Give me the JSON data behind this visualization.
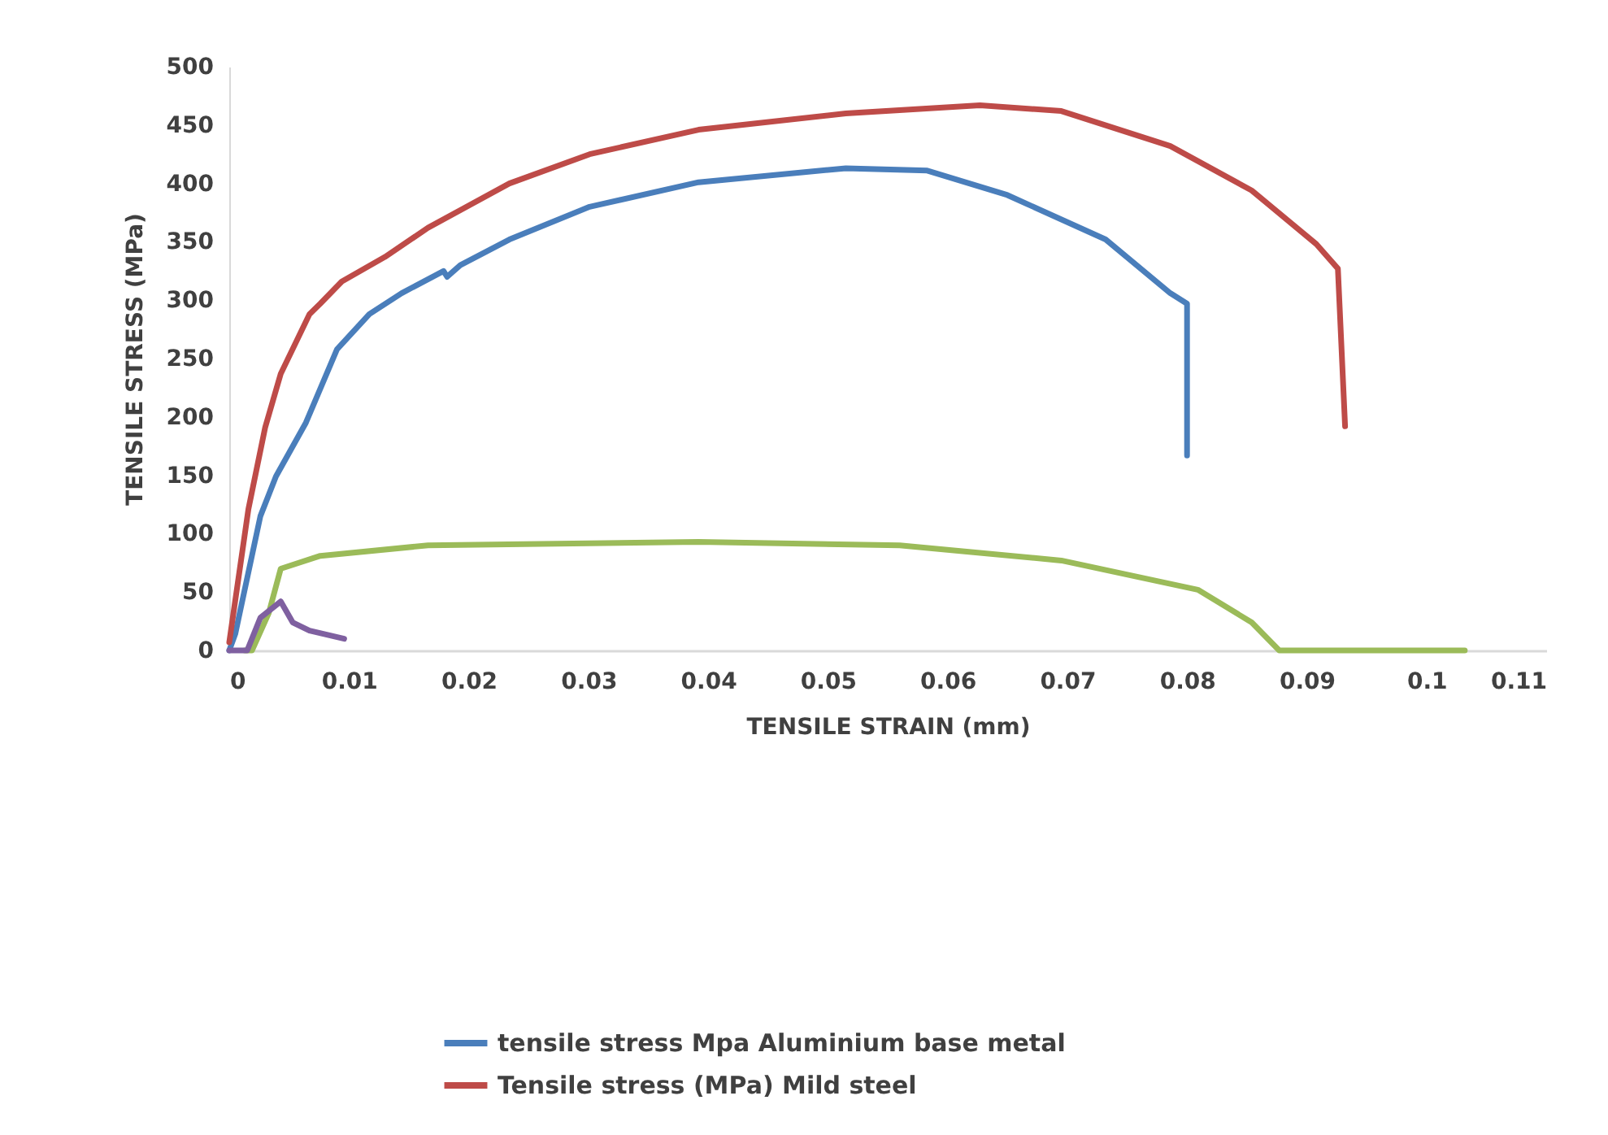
{
  "chart_data": {
    "type": "line",
    "xlabel": "TENSILE  STRAIN (mm)",
    "ylabel": "TENSILE STRESS (MPa)",
    "xlim": [
      0,
      0.11
    ],
    "xticks": [
      0,
      0.01,
      0.02,
      0.03,
      0.04,
      0.05,
      0.06,
      0.07,
      0.08,
      0.09,
      0.1,
      0.11
    ],
    "ylim": [
      0,
      500
    ],
    "yticks": [
      0,
      50,
      100,
      150,
      200,
      250,
      300,
      350,
      400,
      450,
      500
    ],
    "grid": false,
    "legend": "bottom",
    "marker": "none",
    "line_style": "solid",
    "series": [
      {
        "name": "tensile stress Mpa  Aluminium base metal",
        "color": "#4a7ebb",
        "x": [
          0,
          0.0005,
          0.0026,
          0.0039,
          0.0064,
          0.009,
          0.0117,
          0.0144,
          0.0179,
          0.0182,
          0.0193,
          0.0234,
          0.0301,
          0.0392,
          0.0515,
          0.0583,
          0.065,
          0.0732,
          0.0786,
          0.08,
          0.08
        ],
        "values": [
          0,
          14,
          115,
          149,
          195,
          258,
          288,
          306,
          325,
          320,
          330,
          352,
          380,
          401,
          413,
          411,
          390,
          352,
          306,
          297,
          167
        ]
      },
      {
        "name": "Tensile stress (MPa) Mild steel",
        "color": "#be4b48",
        "x": [
          0,
          0.0016,
          0.003,
          0.0043,
          0.0067,
          0.0076,
          0.0094,
          0.013,
          0.0166,
          0.0234,
          0.0301,
          0.0392,
          0.0515,
          0.0627,
          0.0695,
          0.0786,
          0.0854,
          0.0908,
          0.0926,
          0.0932
        ],
        "values": [
          7,
          121,
          191,
          237,
          288,
          297,
          316,
          337,
          362,
          400,
          425,
          446,
          460,
          467,
          462,
          432,
          394,
          348,
          327,
          192
        ]
      },
      {
        "color": "#9bbb59",
        "x": [
          0.0013,
          0.0019,
          0.0033,
          0.0043,
          0.0076,
          0.0166,
          0.0392,
          0.056,
          0.0695,
          0.0809,
          0.0854,
          0.0877,
          0.1032
        ],
        "values": [
          0,
          0,
          32,
          70,
          81,
          90,
          93,
          90,
          77,
          52,
          24,
          0,
          0
        ]
      },
      {
        "color": "#7f60a0",
        "x": [
          0,
          0.0015,
          0.0026,
          0.0043,
          0.0053,
          0.0067,
          0.0096
        ],
        "values": [
          0,
          0,
          28,
          42,
          24,
          17,
          10
        ]
      }
    ]
  }
}
